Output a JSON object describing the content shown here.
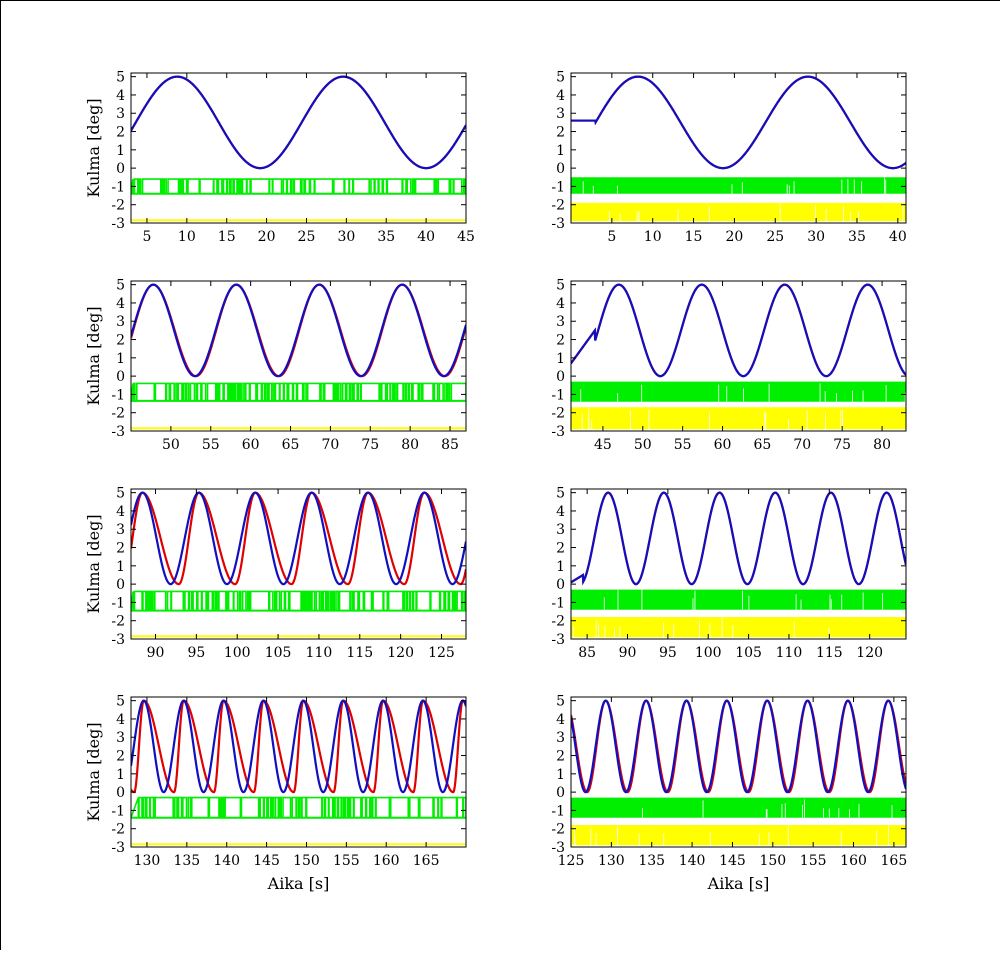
{
  "colors": {
    "reference": "#e00000",
    "measured": "#1010c0",
    "green": "#00ee00",
    "yellow": "#ffff00"
  },
  "chart_data": [
    {
      "type": "line",
      "ylabel": "Kulma [deg]",
      "xlabel": "",
      "xlim": [
        3,
        45
      ],
      "ylim": [
        -3,
        5.2
      ],
      "xticks": [
        5,
        10,
        15,
        20,
        25,
        30,
        35,
        40,
        45
      ],
      "yticks": [
        5,
        4,
        3,
        2,
        1,
        0,
        -1,
        -2,
        -3
      ],
      "series": [
        {
          "color": "reference",
          "kind": "sine",
          "t0": 3,
          "t1": 45,
          "center": 2.5,
          "amp": 2.5,
          "period": 20.8,
          "peak": 8.8,
          "hold": null,
          "lag": 0
        },
        {
          "color": "measured",
          "kind": "sine",
          "t0": 3,
          "t1": 45,
          "center": 2.5,
          "amp": 2.5,
          "period": 20.8,
          "peak": 8.8,
          "hold": null,
          "lag": 0
        },
        {
          "color": "green",
          "kind": "bits",
          "level": -0.6,
          "base": -1.4,
          "density": "sparse"
        },
        {
          "color": "yellow",
          "kind": "flat",
          "level": -2.85
        }
      ]
    },
    {
      "type": "line",
      "ylabel": "",
      "xlabel": "",
      "xlim": [
        0,
        41
      ],
      "ylim": [
        -3,
        5.2
      ],
      "xticks": [
        5,
        10,
        15,
        20,
        25,
        30,
        35,
        40
      ],
      "yticks": [
        5,
        4,
        3,
        2,
        1,
        0,
        -1,
        -2,
        -3
      ],
      "series": [
        {
          "color": "reference",
          "kind": "sine",
          "t0": 0,
          "t1": 41,
          "center": 2.5,
          "amp": 2.5,
          "period": 20.8,
          "peak": 8.2,
          "hold": [
            0,
            3,
            2.6
          ],
          "lag": 0
        },
        {
          "color": "measured",
          "kind": "sine",
          "t0": 0,
          "t1": 41,
          "center": 2.5,
          "amp": 2.5,
          "period": 20.8,
          "peak": 8.2,
          "hold": [
            0,
            3,
            2.6
          ],
          "lag": 0
        },
        {
          "color": "green",
          "kind": "bits",
          "level": -0.5,
          "base": -1.4,
          "density": "dense"
        },
        {
          "color": "yellow",
          "kind": "bits",
          "level": -1.9,
          "base": -2.9,
          "density": "dense"
        }
      ]
    },
    {
      "type": "line",
      "ylabel": "Kulma [deg]",
      "xlabel": "",
      "xlim": [
        45,
        87
      ],
      "ylim": [
        -3,
        5.2
      ],
      "xticks": [
        50,
        55,
        60,
        65,
        70,
        75,
        80,
        85
      ],
      "yticks": [
        5,
        4,
        3,
        2,
        1,
        0,
        -1,
        -2,
        -3
      ],
      "series": [
        {
          "color": "reference",
          "kind": "sine",
          "t0": 45,
          "t1": 87,
          "center": 2.5,
          "amp": 2.5,
          "period": 10.4,
          "peak": 47.8,
          "hold": null,
          "lag": 0.15
        },
        {
          "color": "measured",
          "kind": "sine",
          "t0": 45,
          "t1": 87,
          "center": 2.5,
          "amp": 2.5,
          "period": 10.4,
          "peak": 47.8,
          "hold": null,
          "lag": 0
        },
        {
          "color": "green",
          "kind": "bits",
          "level": -0.4,
          "base": -1.35,
          "density": "sparse"
        },
        {
          "color": "yellow",
          "kind": "flat",
          "level": -2.85
        }
      ]
    },
    {
      "type": "line",
      "ylabel": "",
      "xlabel": "",
      "xlim": [
        41,
        83
      ],
      "ylim": [
        -3,
        5.2
      ],
      "xticks": [
        45,
        50,
        55,
        60,
        65,
        70,
        75,
        80
      ],
      "yticks": [
        5,
        4,
        3,
        2,
        1,
        0,
        -1,
        -2,
        -3
      ],
      "series": [
        {
          "color": "reference",
          "kind": "sine",
          "t0": 41,
          "t1": 83,
          "center": 2.5,
          "amp": 2.5,
          "period": 10.4,
          "peak": 47.0,
          "hold": null,
          "ramp": [
            41,
            44,
            0.7,
            2.5
          ],
          "lag": 0
        },
        {
          "color": "measured",
          "kind": "sine",
          "t0": 41,
          "t1": 83,
          "center": 2.5,
          "amp": 2.5,
          "period": 10.4,
          "peak": 47.0,
          "hold": null,
          "ramp": [
            41,
            44,
            0.7,
            2.5
          ],
          "lag": 0
        },
        {
          "color": "green",
          "kind": "bits",
          "level": -0.3,
          "base": -1.4,
          "density": "dense"
        },
        {
          "color": "yellow",
          "kind": "bits",
          "level": -1.7,
          "base": -2.9,
          "density": "dense"
        }
      ]
    },
    {
      "type": "line",
      "ylabel": "Kulma [deg]",
      "xlabel": "",
      "xlim": [
        87,
        128
      ],
      "ylim": [
        -3,
        5.2
      ],
      "xticks": [
        90,
        95,
        100,
        105,
        110,
        115,
        120,
        125
      ],
      "yticks": [
        5,
        4,
        3,
        2,
        1,
        0,
        -1,
        -2,
        -3
      ],
      "series": [
        {
          "color": "reference",
          "kind": "sine",
          "t0": 87,
          "t1": 128,
          "center": 2.5,
          "amp": 2.5,
          "period": 6.9,
          "peak": 88.4,
          "hold": null,
          "lag": 1.0
        },
        {
          "color": "measured",
          "kind": "sine",
          "t0": 87,
          "t1": 128,
          "center": 2.5,
          "amp": 2.5,
          "period": 6.9,
          "peak": 88.4,
          "hold": null,
          "lag": 0
        },
        {
          "color": "green",
          "kind": "bits",
          "level": -0.4,
          "base": -1.45,
          "density": "sparse"
        },
        {
          "color": "yellow",
          "kind": "flat",
          "level": -2.85
        }
      ]
    },
    {
      "type": "line",
      "ylabel": "",
      "xlabel": "",
      "xlim": [
        83,
        124.5
      ],
      "ylim": [
        -3,
        5.2
      ],
      "xticks": [
        85,
        90,
        95,
        100,
        105,
        110,
        115,
        120
      ],
      "yticks": [
        5,
        4,
        3,
        2,
        1,
        0,
        -1,
        -2,
        -3
      ],
      "series": [
        {
          "color": "reference",
          "kind": "sine",
          "t0": 83,
          "t1": 124.5,
          "center": 2.5,
          "amp": 2.5,
          "period": 6.9,
          "peak": 87.6,
          "hold": null,
          "ramp": [
            83,
            84.5,
            0.1,
            0.5
          ],
          "lag": 0
        },
        {
          "color": "measured",
          "kind": "sine",
          "t0": 83,
          "t1": 124.5,
          "center": 2.5,
          "amp": 2.5,
          "period": 6.9,
          "peak": 87.6,
          "hold": null,
          "ramp": [
            83,
            84.5,
            0.1,
            0.5
          ],
          "lag": 0
        },
        {
          "color": "green",
          "kind": "bits",
          "level": -0.3,
          "base": -1.4,
          "density": "dense"
        },
        {
          "color": "yellow",
          "kind": "bits",
          "level": -1.8,
          "base": -2.9,
          "density": "dense"
        }
      ]
    },
    {
      "type": "line",
      "ylabel": "Kulma [deg]",
      "xlabel": "Aika [s]",
      "xlim": [
        128,
        170
      ],
      "ylim": [
        -3,
        5.2
      ],
      "xticks": [
        130,
        135,
        140,
        145,
        150,
        155,
        160,
        165
      ],
      "yticks": [
        5,
        4,
        3,
        2,
        1,
        0,
        -1,
        -2,
        -3
      ],
      "series": [
        {
          "color": "reference",
          "kind": "sine",
          "t0": 128,
          "t1": 170,
          "center": 2.5,
          "amp": 2.5,
          "period": 5.0,
          "peak": 129.6,
          "hold": null,
          "lag": 1.3
        },
        {
          "color": "measured",
          "kind": "sine",
          "t0": 128,
          "t1": 170,
          "center": 2.5,
          "amp": 2.5,
          "period": 5.0,
          "peak": 129.6,
          "hold": null,
          "lag": 0
        },
        {
          "color": "green",
          "kind": "bits",
          "level": -0.3,
          "base": -1.4,
          "density": "sparse"
        },
        {
          "color": "yellow",
          "kind": "flat",
          "level": -2.85
        }
      ]
    },
    {
      "type": "line",
      "ylabel": "",
      "xlabel": "Aika [s]",
      "xlim": [
        125,
        166.5
      ],
      "ylim": [
        -3,
        5.2
      ],
      "xticks": [
        125,
        130,
        135,
        140,
        145,
        150,
        155,
        160,
        165
      ],
      "yticks": [
        5,
        4,
        3,
        2,
        1,
        0,
        -1,
        -2,
        -3
      ],
      "series": [
        {
          "color": "reference",
          "kind": "sine",
          "t0": 125,
          "t1": 166.5,
          "center": 2.5,
          "amp": 2.5,
          "period": 5.0,
          "peak": 129.3,
          "hold": null,
          "lag": 0.2
        },
        {
          "color": "measured",
          "kind": "sine",
          "t0": 125,
          "t1": 166.5,
          "center": 2.5,
          "amp": 2.5,
          "period": 5.0,
          "peak": 129.3,
          "hold": null,
          "lag": 0
        },
        {
          "color": "green",
          "kind": "bits",
          "level": -0.3,
          "base": -1.4,
          "density": "dense"
        },
        {
          "color": "yellow",
          "kind": "bits",
          "level": -1.8,
          "base": -2.9,
          "density": "dense"
        }
      ]
    }
  ]
}
